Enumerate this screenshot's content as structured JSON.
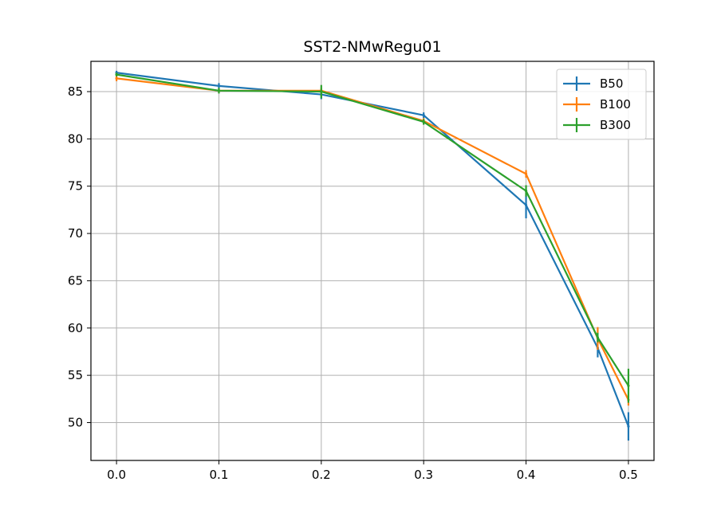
{
  "chart_data": {
    "type": "line",
    "title": "SST2-NMwRegu01",
    "xlabel": "",
    "ylabel": "",
    "xlim": [
      -0.025,
      0.525
    ],
    "ylim": [
      46.0,
      88.2
    ],
    "xticks": [
      0.0,
      0.1,
      0.2,
      0.3,
      0.4,
      0.5
    ],
    "xtick_labels": [
      "0.0",
      "0.1",
      "0.2",
      "0.3",
      "0.4",
      "0.5"
    ],
    "yticks": [
      50,
      55,
      60,
      65,
      70,
      75,
      80,
      85
    ],
    "ytick_labels": [
      "50",
      "55",
      "60",
      "65",
      "70",
      "75",
      "80",
      "85"
    ],
    "grid": true,
    "legend_position": "top-right",
    "x": [
      0.0,
      0.1,
      0.2,
      0.3,
      0.4,
      0.47,
      0.5
    ],
    "series": [
      {
        "name": "B50",
        "color": "#1f77b4",
        "values": [
          87.0,
          85.6,
          84.7,
          82.5,
          73.0,
          57.9,
          49.6
        ],
        "errors": [
          0.2,
          0.3,
          0.5,
          0.3,
          1.4,
          1.0,
          1.5
        ]
      },
      {
        "name": "B100",
        "color": "#ff7f0e",
        "values": [
          86.4,
          85.1,
          85.1,
          81.9,
          76.3,
          58.9,
          52.4
        ],
        "errors": [
          0.3,
          0.2,
          0.3,
          0.3,
          0.4,
          1.2,
          0.6
        ]
      },
      {
        "name": "B300",
        "color": "#2ca02c",
        "values": [
          86.8,
          85.1,
          85.0,
          81.8,
          74.5,
          59.0,
          53.9
        ],
        "errors": [
          0.2,
          0.3,
          0.7,
          0.3,
          0.6,
          0.5,
          1.8
        ]
      }
    ]
  }
}
